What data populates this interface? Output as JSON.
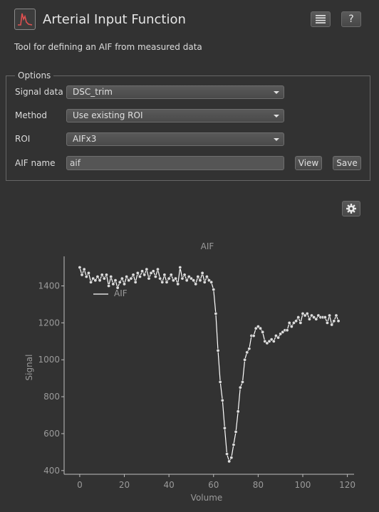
{
  "header": {
    "title": "Arterial Input Function",
    "help_label": "?",
    "app_icon": "aif-curve-icon",
    "menu_icon": "list-icon"
  },
  "subtitle": "Tool for defining an AIF from measured data",
  "options": {
    "legend": "Options",
    "signal_data": {
      "label": "Signal data",
      "value": "DSC_trim"
    },
    "method": {
      "label": "Method",
      "value": "Use existing ROI"
    },
    "roi": {
      "label": "ROI",
      "value": "AIFx3"
    },
    "aif_name": {
      "label": "AIF name",
      "value": "aif"
    },
    "view_label": "View",
    "save_label": "Save"
  },
  "settings_icon": "gear-icon",
  "colors": {
    "background": "#323232",
    "line": "#ffffff",
    "axis": "#9a9a9a"
  },
  "chart_data": {
    "type": "line",
    "title": "AIF",
    "xlabel": "Volume",
    "ylabel": "Signal",
    "xlim": [
      -7,
      123
    ],
    "ylim": [
      380,
      1560
    ],
    "xticks": [
      0,
      20,
      40,
      60,
      80,
      100,
      120
    ],
    "yticks": [
      400,
      600,
      800,
      1000,
      1200,
      1400
    ],
    "legend": {
      "position": "top-left",
      "entries": [
        "AIF"
      ]
    },
    "grid": false,
    "series": [
      {
        "name": "AIF",
        "markers": true,
        "x": [
          0,
          1,
          2,
          3,
          4,
          5,
          6,
          7,
          8,
          9,
          10,
          11,
          12,
          13,
          14,
          15,
          16,
          17,
          18,
          19,
          20,
          21,
          22,
          23,
          24,
          25,
          26,
          27,
          28,
          29,
          30,
          31,
          32,
          33,
          34,
          35,
          36,
          37,
          38,
          39,
          40,
          41,
          42,
          43,
          44,
          45,
          46,
          47,
          48,
          49,
          50,
          51,
          52,
          53,
          54,
          55,
          56,
          57,
          58,
          59,
          60,
          61,
          62,
          63,
          64,
          65,
          66,
          67,
          68,
          69,
          70,
          71,
          72,
          73,
          74,
          75,
          76,
          77,
          78,
          79,
          80,
          81,
          82,
          83,
          84,
          85,
          86,
          87,
          88,
          89,
          90,
          91,
          92,
          93,
          94,
          95,
          96,
          97,
          98,
          99,
          100,
          101,
          102,
          103,
          104,
          105,
          106,
          107,
          108,
          109,
          110,
          111,
          112,
          113,
          114,
          115,
          116
        ],
        "y": [
          1500,
          1460,
          1490,
          1450,
          1470,
          1420,
          1440,
          1430,
          1450,
          1430,
          1460,
          1440,
          1460,
          1400,
          1450,
          1410,
          1430,
          1390,
          1420,
          1440,
          1410,
          1450,
          1430,
          1440,
          1460,
          1420,
          1470,
          1450,
          1480,
          1460,
          1490,
          1440,
          1470,
          1480,
          1450,
          1490,
          1440,
          1420,
          1460,
          1420,
          1440,
          1460,
          1430,
          1440,
          1410,
          1500,
          1440,
          1460,
          1430,
          1450,
          1440,
          1430,
          1410,
          1450,
          1430,
          1470,
          1420,
          1450,
          1430,
          1420,
          1380,
          1250,
          1050,
          880,
          780,
          630,
          490,
          450,
          470,
          540,
          610,
          720,
          850,
          880,
          1000,
          1040,
          1060,
          1130,
          1130,
          1170,
          1180,
          1170,
          1150,
          1100,
          1090,
          1100,
          1110,
          1100,
          1130,
          1120,
          1140,
          1150,
          1160,
          1160,
          1200,
          1180,
          1200,
          1210,
          1230,
          1200,
          1250,
          1240,
          1250,
          1220,
          1240,
          1230,
          1220,
          1240,
          1230,
          1230,
          1230,
          1200,
          1240,
          1190,
          1210,
          1240,
          1210
        ]
      }
    ]
  }
}
